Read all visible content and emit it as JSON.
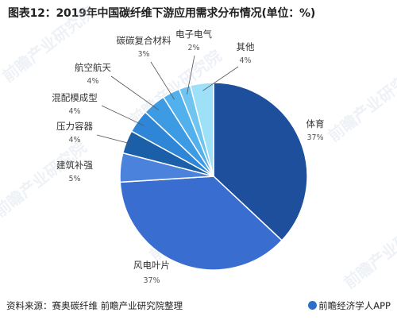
{
  "title": "图表12：2019年中国碳纤维下游应用需求分布情况(单位：%)",
  "source": "资料来源：赛奥碳纤维 前瞻产业研究院整理",
  "brand": "前瞻经济学人APP",
  "watermark": "前瞻产业研究院",
  "colors": {
    "title": "#1f1f1f",
    "label": "#333333"
  },
  "chart_data": {
    "type": "pie",
    "title": "图表12：2019年中国碳纤维下游应用需求分布情况(单位：%)",
    "unit": "%",
    "start_angle_deg": 0,
    "direction": "clockwise",
    "legend": "none",
    "slices": [
      {
        "label": "体育",
        "value": 37,
        "value_label": "37%",
        "color": "#1e4f9c"
      },
      {
        "label": "风电叶片",
        "value": 37,
        "value_label": "37%",
        "color": "#3a6dd0"
      },
      {
        "label": "建筑补强",
        "value": 5,
        "value_label": "5%",
        "color": "#4a82dc"
      },
      {
        "label": "压力容器",
        "value": 4,
        "value_label": "4%",
        "color": "#1a5fa8"
      },
      {
        "label": "混配模成型",
        "value": 4,
        "value_label": "4%",
        "color": "#2f86d6"
      },
      {
        "label": "航空航天",
        "value": 4,
        "value_label": "4%",
        "color": "#3d9be4"
      },
      {
        "label": "碳碳复合材料",
        "value": 3,
        "value_label": "3%",
        "color": "#52b0ec"
      },
      {
        "label": "电子电气",
        "value": 2,
        "value_label": "2%",
        "color": "#6fc4f0"
      },
      {
        "label": "其他",
        "value": 4,
        "value_label": "4%",
        "color": "#9ee0f7"
      }
    ]
  }
}
